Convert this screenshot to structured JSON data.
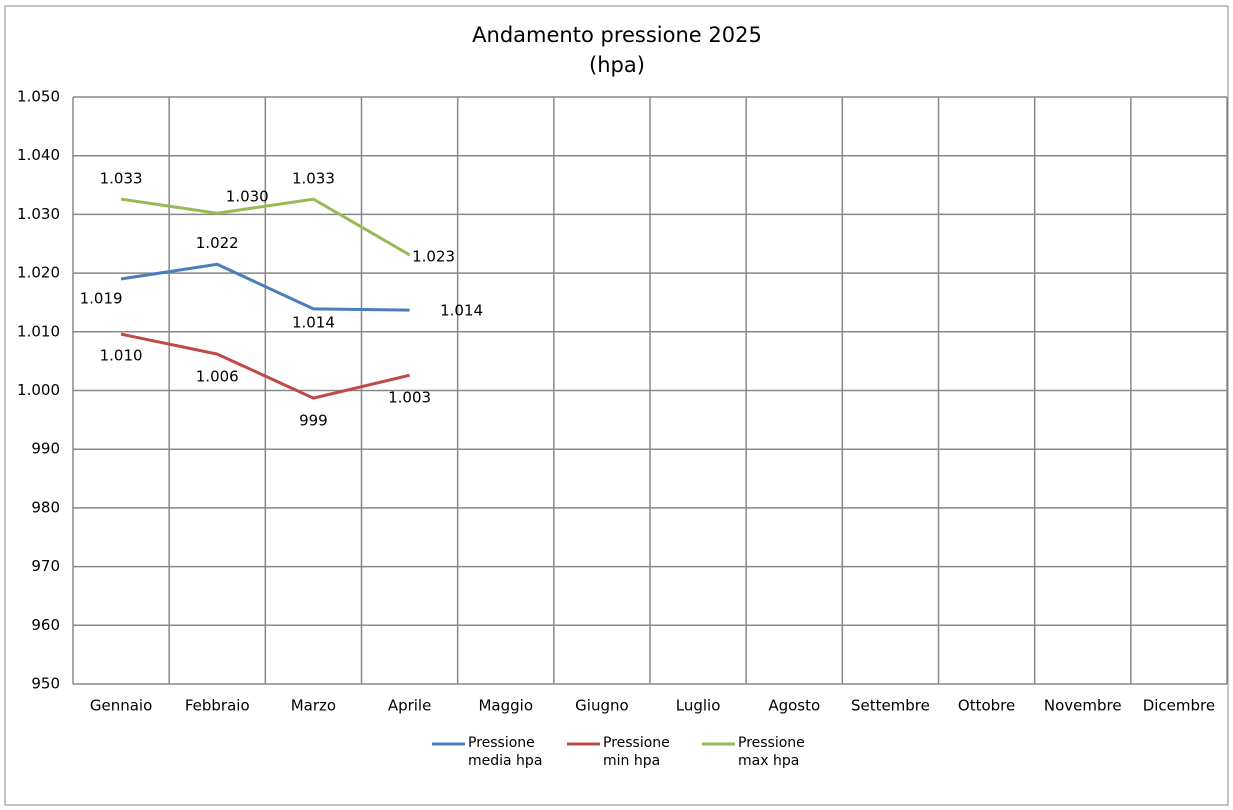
{
  "chart_data": {
    "type": "line",
    "title": "Andamento pressione 2025",
    "subtitle": "(hpa)",
    "categories": [
      "Gennaio",
      "Febbraio",
      "Marzo",
      "Aprile",
      "Maggio",
      "Giugno",
      "Luglio",
      "Agosto",
      "Settembre",
      "Ottobre",
      "Novembre",
      "Dicembre"
    ],
    "series": [
      {
        "name": "Pressione media hpa",
        "color": "#4a7ebb",
        "values": [
          1019.0,
          1021.5,
          1013.9,
          1013.7,
          null,
          null,
          null,
          null,
          null,
          null,
          null,
          null
        ],
        "value_labels": [
          "1.019",
          "1.022",
          "1.014",
          "1.014",
          null,
          null,
          null,
          null,
          null,
          null,
          null,
          null
        ]
      },
      {
        "name": "Pressione min hpa",
        "color": "#be4b48",
        "values": [
          1009.6,
          1006.2,
          998.7,
          1002.6,
          null,
          null,
          null,
          null,
          null,
          null,
          null,
          null
        ],
        "value_labels": [
          "1.010",
          "1.006",
          "999",
          "1.003",
          null,
          null,
          null,
          null,
          null,
          null,
          null,
          null
        ]
      },
      {
        "name": "Pressione max hpa",
        "color": "#98b954",
        "values": [
          1032.6,
          1030.2,
          1032.6,
          1023.1,
          null,
          null,
          null,
          null,
          null,
          null,
          null,
          null
        ],
        "value_labels": [
          "1.033",
          "1.030",
          "1.033",
          "1.023",
          null,
          null,
          null,
          null,
          null,
          null,
          null,
          null
        ]
      }
    ],
    "ylim": [
      950,
      1050
    ],
    "yticks": [
      950,
      960,
      970,
      980,
      990,
      {
        "value": 1000,
        "label": "1.000"
      },
      {
        "value": 1010,
        "label": "1.010"
      },
      {
        "value": 1020,
        "label": "1.020"
      },
      {
        "value": 1030,
        "label": "1.030"
      },
      {
        "value": 1040,
        "label": "1.040"
      },
      {
        "value": 1050,
        "label": "1.050"
      }
    ],
    "grid": true,
    "legend": "bottom"
  }
}
